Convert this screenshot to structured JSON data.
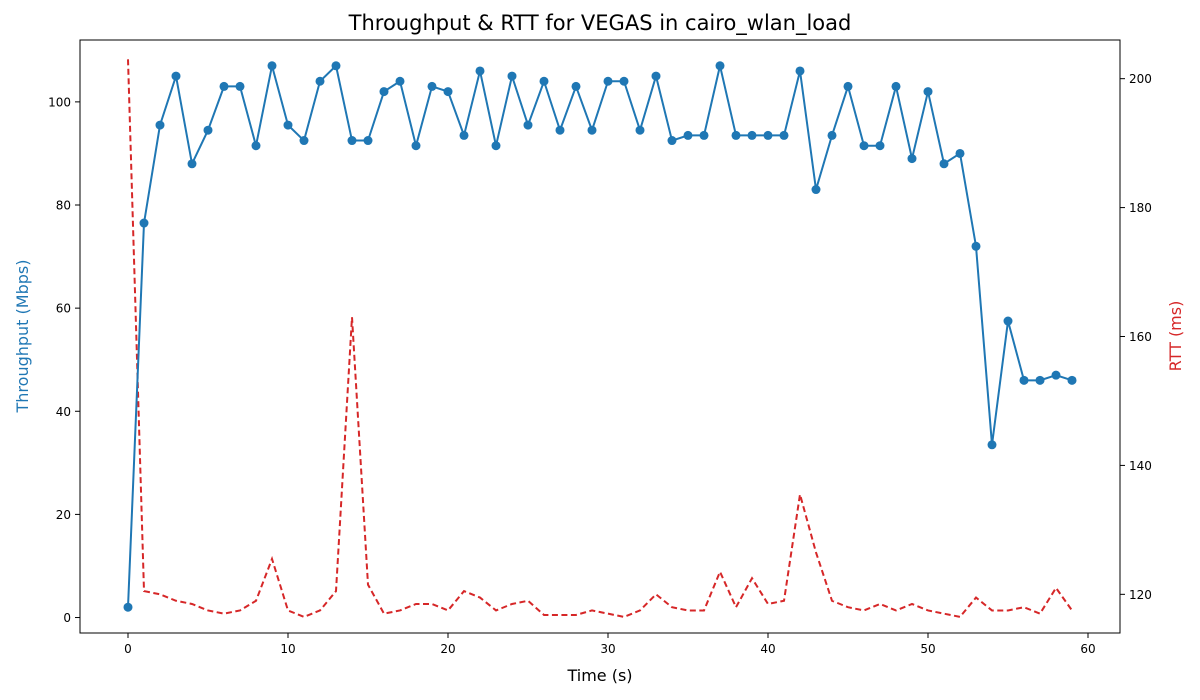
{
  "chart_data": {
    "type": "line",
    "title": "Throughput & RTT for VEGAS in cairo_wlan_load",
    "xlabel": "Time (s)",
    "ylabel": "Throughput (Mbps)",
    "y2label": "RTT (ms)",
    "xlim": [
      -3,
      62
    ],
    "ylim": [
      -3,
      112
    ],
    "y2lim": [
      114,
      206
    ],
    "xticks": [
      0,
      10,
      20,
      30,
      40,
      50,
      60
    ],
    "yticks": [
      0,
      20,
      40,
      60,
      80,
      100
    ],
    "y2ticks": [
      120,
      140,
      160,
      180,
      200
    ],
    "grid": false,
    "legend": "none",
    "colors": {
      "throughput": "#1f77b4",
      "rtt": "#d62728"
    },
    "series": [
      {
        "axis": "left",
        "style": "solid-markers",
        "x": [
          0,
          1,
          2,
          3,
          4,
          5,
          6,
          7,
          8,
          9,
          10,
          11,
          12,
          13,
          14,
          15,
          16,
          17,
          18,
          19,
          20,
          21,
          22,
          23,
          24,
          25,
          26,
          27,
          28,
          29,
          30,
          31,
          32,
          33,
          34,
          35,
          36,
          37,
          38,
          39,
          40,
          41,
          42,
          43,
          44,
          45,
          46,
          47,
          48,
          49,
          50,
          51,
          52,
          53,
          54,
          55,
          56,
          57,
          58,
          59
        ],
        "values": [
          2,
          76.5,
          95.5,
          105,
          88,
          94.5,
          103,
          103,
          91.5,
          107,
          95.5,
          92.5,
          104,
          107,
          92.5,
          92.5,
          102,
          104,
          91.5,
          103,
          102,
          93.5,
          106,
          91.5,
          105,
          95.5,
          104,
          94.5,
          103,
          94.5,
          104,
          104,
          94.5,
          105,
          92.5,
          93.5,
          93.5,
          107,
          93.5,
          93.5,
          93.5,
          93.5,
          106,
          83,
          93.5,
          103,
          91.5,
          91.5,
          103,
          89,
          102,
          88,
          90,
          72,
          33.5,
          57.5,
          46,
          46,
          47,
          46
        ]
      },
      {
        "axis": "right",
        "style": "dashed",
        "x": [
          0,
          1,
          2,
          3,
          4,
          5,
          6,
          7,
          8,
          9,
          10,
          11,
          12,
          13,
          14,
          15,
          16,
          17,
          18,
          19,
          20,
          21,
          22,
          23,
          24,
          25,
          26,
          27,
          28,
          29,
          30,
          31,
          32,
          33,
          34,
          35,
          36,
          37,
          38,
          39,
          40,
          41,
          42,
          43,
          44,
          45,
          46,
          47,
          48,
          49,
          50,
          51,
          52,
          53,
          54,
          55,
          56,
          57,
          58,
          59
        ],
        "values": [
          203,
          120.5,
          120,
          119,
          118.5,
          117.5,
          117,
          117.5,
          119,
          125.5,
          117.5,
          116.5,
          117.5,
          120.5,
          163,
          121.5,
          117,
          117.5,
          118.5,
          118.5,
          117.5,
          120.5,
          119.5,
          117.5,
          118.5,
          119,
          116.8,
          116.8,
          116.8,
          117.5,
          117,
          116.5,
          117.5,
          120,
          118,
          117.5,
          117.5,
          123.5,
          118,
          122.5,
          118.5,
          119,
          135.5,
          126.5,
          119,
          118,
          117.5,
          118.5,
          117.5,
          118.5,
          117.5,
          117,
          116.5,
          119.5,
          117.5,
          117.5,
          118,
          117,
          121,
          117.5
        ]
      }
    ]
  }
}
